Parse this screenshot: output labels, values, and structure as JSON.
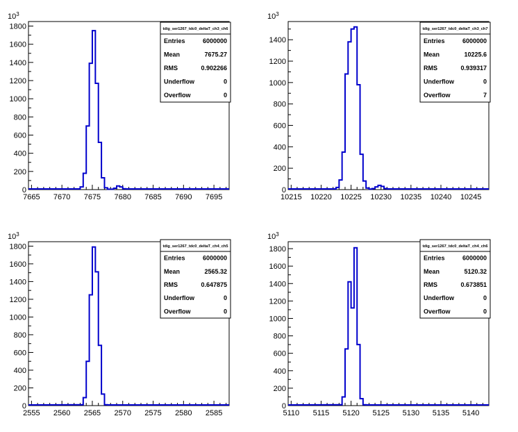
{
  "chart_data": [
    {
      "type": "histogram",
      "stats_title": "tdig_ser1267_tdc0_deltaT_ch3_ch6",
      "stats": [
        {
          "label": "Entries",
          "value": "6000000"
        },
        {
          "label": "Mean",
          "value": "7675.27"
        },
        {
          "label": "RMS",
          "value": "0.902266"
        },
        {
          "label": "Underflow",
          "value": "0"
        },
        {
          "label": "Overflow",
          "value": "0"
        }
      ],
      "y_exponent": "10",
      "y_exponent_power": "3",
      "xlim": [
        7664.5,
        7697.5
      ],
      "ylim": [
        0,
        1850
      ],
      "xticks": [
        7665,
        7670,
        7675,
        7680,
        7685,
        7690,
        7695
      ],
      "xtick_labels": [
        "7665",
        "7670",
        "7675",
        "7680",
        "7685",
        "7690",
        "7695"
      ],
      "yticks": [
        0,
        200,
        400,
        600,
        800,
        1000,
        1200,
        1400,
        1600,
        1800
      ],
      "ytick_labels": [
        "0",
        "200",
        "400",
        "600",
        "800",
        "1000",
        "1200",
        "1400",
        "1600",
        "1800"
      ],
      "bin_width": 0.5,
      "bins_x": [
        7672.5,
        7673.0,
        7673.5,
        7674.0,
        7674.5,
        7675.0,
        7675.5,
        7676.0,
        7676.5,
        7677.0,
        7677.5,
        7678.0,
        7678.5,
        7679.0,
        7679.5,
        7680.0,
        7680.5
      ],
      "bins_y": [
        0,
        30,
        180,
        700,
        1390,
        1750,
        1170,
        520,
        130,
        20,
        5,
        5,
        15,
        40,
        30,
        10,
        0
      ],
      "color": "#0000cc"
    },
    {
      "type": "histogram",
      "stats_title": "tdig_ser1267_tdc0_deltaT_ch3_ch7",
      "stats": [
        {
          "label": "Entries",
          "value": "6000000"
        },
        {
          "label": "Mean",
          "value": "10225.6"
        },
        {
          "label": "RMS",
          "value": "0.939317"
        },
        {
          "label": "Underflow",
          "value": "0"
        },
        {
          "label": "Overflow",
          "value": "7"
        }
      ],
      "y_exponent": "10",
      "y_exponent_power": "3",
      "xlim": [
        10214.5,
        10248
      ],
      "ylim": [
        0,
        1570
      ],
      "xticks": [
        10215,
        10220,
        10225,
        10230,
        10235,
        10240,
        10245
      ],
      "xtick_labels": [
        "10215",
        "10220",
        "10225",
        "10230",
        "10235",
        "10240",
        "10245"
      ],
      "yticks": [
        0,
        200,
        400,
        600,
        800,
        1000,
        1200,
        1400
      ],
      "ytick_labels": [
        "0",
        "200",
        "400",
        "600",
        "800",
        "1000",
        "1200",
        "1400"
      ],
      "bin_width": 0.5,
      "bins_x": [
        10222.0,
        10222.5,
        10223.0,
        10223.5,
        10224.0,
        10224.5,
        10225.0,
        10225.5,
        10226.0,
        10226.5,
        10227.0,
        10227.5,
        10228.0,
        10228.5,
        10229.0,
        10229.5,
        10230.0,
        10230.5,
        10231.0
      ],
      "bins_y": [
        0,
        20,
        90,
        350,
        1080,
        1380,
        1500,
        1520,
        980,
        330,
        80,
        15,
        5,
        10,
        25,
        40,
        30,
        10,
        0
      ],
      "color": "#0000cc"
    },
    {
      "type": "histogram",
      "stats_title": "tdig_ser1267_tdc0_deltaT_ch4_ch5",
      "stats": [
        {
          "label": "Entries",
          "value": "6000000"
        },
        {
          "label": "Mean",
          "value": "2565.32"
        },
        {
          "label": "RMS",
          "value": "0.647875"
        },
        {
          "label": "Underflow",
          "value": "0"
        },
        {
          "label": "Overflow",
          "value": "0"
        }
      ],
      "y_exponent": "10",
      "y_exponent_power": "3",
      "xlim": [
        2554.5,
        2587.5
      ],
      "ylim": [
        0,
        1850
      ],
      "xticks": [
        2555,
        2560,
        2565,
        2570,
        2575,
        2580,
        2585
      ],
      "xtick_labels": [
        "2555",
        "2560",
        "2565",
        "2570",
        "2575",
        "2580",
        "2585"
      ],
      "yticks": [
        0,
        200,
        400,
        600,
        800,
        1000,
        1200,
        1400,
        1600,
        1800
      ],
      "ytick_labels": [
        "0",
        "200",
        "400",
        "600",
        "800",
        "1000",
        "1200",
        "1400",
        "1600",
        "1800"
      ],
      "bin_width": 0.5,
      "bins_x": [
        2563.0,
        2563.5,
        2564.0,
        2564.5,
        2565.0,
        2565.5,
        2566.0,
        2566.5,
        2567.0
      ],
      "bins_y": [
        10,
        90,
        500,
        1250,
        1790,
        1510,
        680,
        130,
        10
      ],
      "color": "#0000cc"
    },
    {
      "type": "histogram",
      "stats_title": "tdig_ser1267_tdc0_deltaT_ch4_ch6",
      "stats": [
        {
          "label": "Entries",
          "value": "6000000"
        },
        {
          "label": "Mean",
          "value": "5120.32"
        },
        {
          "label": "RMS",
          "value": "0.673851"
        },
        {
          "label": "Underflow",
          "value": "0"
        },
        {
          "label": "Overflow",
          "value": "0"
        }
      ],
      "y_exponent": "10",
      "y_exponent_power": "3",
      "xlim": [
        5109.5,
        5143
      ],
      "ylim": [
        0,
        1880
      ],
      "xticks": [
        5110,
        5115,
        5120,
        5125,
        5130,
        5135,
        5140
      ],
      "xtick_labels": [
        "5110",
        "5115",
        "5120",
        "5125",
        "5130",
        "5135",
        "5140"
      ],
      "yticks": [
        0,
        200,
        400,
        600,
        800,
        1000,
        1200,
        1400,
        1600,
        1800
      ],
      "ytick_labels": [
        "0",
        "200",
        "400",
        "600",
        "800",
        "1000",
        "1200",
        "1400",
        "1600",
        "1800"
      ],
      "bin_width": 0.5,
      "bins_x": [
        5118.0,
        5118.5,
        5119.0,
        5119.5,
        5120.0,
        5120.5,
        5121.0,
        5121.5,
        5122.0
      ],
      "bins_y": [
        10,
        100,
        650,
        1420,
        1120,
        1810,
        700,
        80,
        10
      ],
      "color": "#0000cc"
    }
  ]
}
